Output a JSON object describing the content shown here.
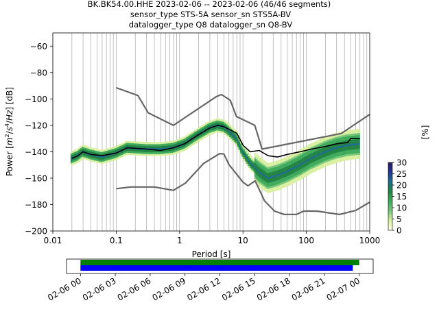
{
  "title_lines": [
    "BK.BK54.00.HHE   2023-02-06 -- 2023-02-06  (46/46 segments)",
    "sensor_type STS-5A sensor_sn STS5A-BV",
    "datalogger_type Q8 datalogger_sn Q8-BV"
  ],
  "chart_data": [
    {
      "type": "heatmap",
      "xlabel": "Period [s]",
      "ylabel_parts": [
        "Power [",
        "m",
        "2",
        "/",
        "s",
        "4",
        "/",
        "Hz",
        "] [dB]"
      ],
      "xscale": "log",
      "xlim": [
        0.01,
        1000
      ],
      "ylim": [
        -200,
        -50
      ],
      "xticks": [
        {
          "v": 0.01,
          "label": "0.01"
        },
        {
          "v": 0.1,
          "label": "0.1"
        },
        {
          "v": 1,
          "label": "1"
        },
        {
          "v": 10,
          "label": "10"
        },
        {
          "v": 100,
          "label": "100"
        },
        {
          "v": 1000,
          "label": "1000"
        }
      ],
      "yticks": [
        {
          "v": -200,
          "label": "−200"
        },
        {
          "v": -180,
          "label": "−180"
        },
        {
          "v": -160,
          "label": "−160"
        },
        {
          "v": -140,
          "label": "−140"
        },
        {
          "v": -120,
          "label": "−120"
        },
        {
          "v": -100,
          "label": "−100"
        },
        {
          "v": -80,
          "label": "−80"
        },
        {
          "v": -60,
          "label": "−60"
        }
      ],
      "grid": "vertical",
      "series": [
        {
          "role": "model-high",
          "color": "#666666",
          "points": [
            [
              0.1,
              -91.5
            ],
            [
              0.22,
              -97.4
            ],
            [
              0.32,
              -110.5
            ],
            [
              0.8,
              -120
            ],
            [
              3.8,
              -98.2
            ],
            [
              4.6,
              -96.7
            ],
            [
              6.3,
              -101
            ],
            [
              7.9,
              -113.3
            ],
            [
              15.4,
              -120
            ],
            [
              20,
              -138
            ],
            [
              354.8,
              -126.2
            ],
            [
              1000,
              -111.7
            ]
          ]
        },
        {
          "role": "model-low",
          "color": "#666666",
          "points": [
            [
              0.1,
              -168
            ],
            [
              0.17,
              -166.7
            ],
            [
              0.4,
              -166.7
            ],
            [
              0.8,
              -169.2
            ],
            [
              1.24,
              -163.7
            ],
            [
              2.4,
              -148.8
            ],
            [
              4.3,
              -141.4
            ],
            [
              5,
              -141.7
            ],
            [
              6,
              -149.7
            ],
            [
              10,
              -163
            ],
            [
              12,
              -165.8
            ],
            [
              15.6,
              -162
            ],
            [
              21.9,
              -177.2
            ],
            [
              31.6,
              -185
            ],
            [
              45,
              -187.5
            ],
            [
              70,
              -187.5
            ],
            [
              90,
              -185
            ],
            [
              110,
              -184.9
            ],
            [
              150,
              -185
            ],
            [
              332,
              -187.5
            ],
            [
              600,
              -184.5
            ],
            [
              1000,
              -178.2
            ]
          ]
        },
        {
          "role": "mean",
          "color": "#000000",
          "points": [
            [
              0.02,
              -145
            ],
            [
              0.025,
              -143
            ],
            [
              0.03,
              -140
            ],
            [
              0.04,
              -142
            ],
            [
              0.06,
              -143
            ],
            [
              0.1,
              -141
            ],
            [
              0.15,
              -137
            ],
            [
              0.3,
              -138
            ],
            [
              0.5,
              -139
            ],
            [
              0.8,
              -137
            ],
            [
              1.2,
              -134
            ],
            [
              2,
              -127
            ],
            [
              3,
              -122
            ],
            [
              4,
              -120
            ],
            [
              5,
              -121
            ],
            [
              6,
              -123
            ],
            [
              8,
              -126
            ],
            [
              10,
              -135
            ],
            [
              13,
              -140
            ],
            [
              18,
              -139
            ],
            [
              25,
              -143
            ],
            [
              35,
              -144
            ],
            [
              50,
              -142
            ],
            [
              80,
              -140
            ],
            [
              120,
              -138
            ],
            [
              200,
              -136
            ],
            [
              300,
              -134
            ],
            [
              450,
              -133
            ],
            [
              500,
              -130
            ],
            [
              700,
              -130
            ]
          ]
        }
      ],
      "density_band": [
        {
          "x": 0.02,
          "y": -145
        },
        {
          "x": 0.025,
          "y": -143
        },
        {
          "x": 0.03,
          "y": -140
        },
        {
          "x": 0.04,
          "y": -142
        },
        {
          "x": 0.06,
          "y": -144
        },
        {
          "x": 0.1,
          "y": -141
        },
        {
          "x": 0.15,
          "y": -137
        },
        {
          "x": 0.3,
          "y": -138
        },
        {
          "x": 0.5,
          "y": -138
        },
        {
          "x": 0.8,
          "y": -137
        },
        {
          "x": 1.2,
          "y": -134
        },
        {
          "x": 2,
          "y": -127
        },
        {
          "x": 3,
          "y": -122
        },
        {
          "x": 4,
          "y": -120
        },
        {
          "x": 5,
          "y": -121
        },
        {
          "x": 6,
          "y": -124
        },
        {
          "x": 8,
          "y": -130
        },
        {
          "x": 10,
          "y": -140
        },
        {
          "x": 13,
          "y": -148
        },
        {
          "x": 18,
          "y": -155
        },
        {
          "x": 25,
          "y": -160
        },
        {
          "x": 35,
          "y": -158
        },
        {
          "x": 50,
          "y": -155
        },
        {
          "x": 80,
          "y": -150
        },
        {
          "x": 120,
          "y": -145
        },
        {
          "x": 200,
          "y": -140
        },
        {
          "x": 300,
          "y": -137
        },
        {
          "x": 450,
          "y": -135
        },
        {
          "x": 700,
          "y": -134
        }
      ],
      "colorbar": {
        "label": "[%]",
        "range": [
          0,
          30
        ],
        "ticks": [
          0,
          5,
          10,
          15,
          20,
          25,
          30
        ],
        "colors": [
          "#ffffe5",
          "#d9f0a3",
          "#78c679",
          "#41ab5d",
          "#238443",
          "#1f6f8b",
          "#253494",
          "#2a1a5e"
        ]
      }
    },
    {
      "type": "bar",
      "role": "data-availability",
      "x_ticklabels": [
        "02-06 00",
        "02-06 03",
        "02-06 06",
        "02-06 09",
        "02-06 12",
        "02-06 15",
        "02-06 18",
        "02-06 21",
        "02-07 00"
      ],
      "x_hours": [
        0,
        3,
        6,
        9,
        12,
        15,
        18,
        21,
        24
      ],
      "xlim_hours": [
        -1.2,
        25.2
      ],
      "bars": [
        {
          "color": "#008000",
          "start_h": 0,
          "end_h": 24.0
        },
        {
          "color": "#0000ff",
          "start_h": 0,
          "end_h": 23.45
        }
      ]
    }
  ]
}
